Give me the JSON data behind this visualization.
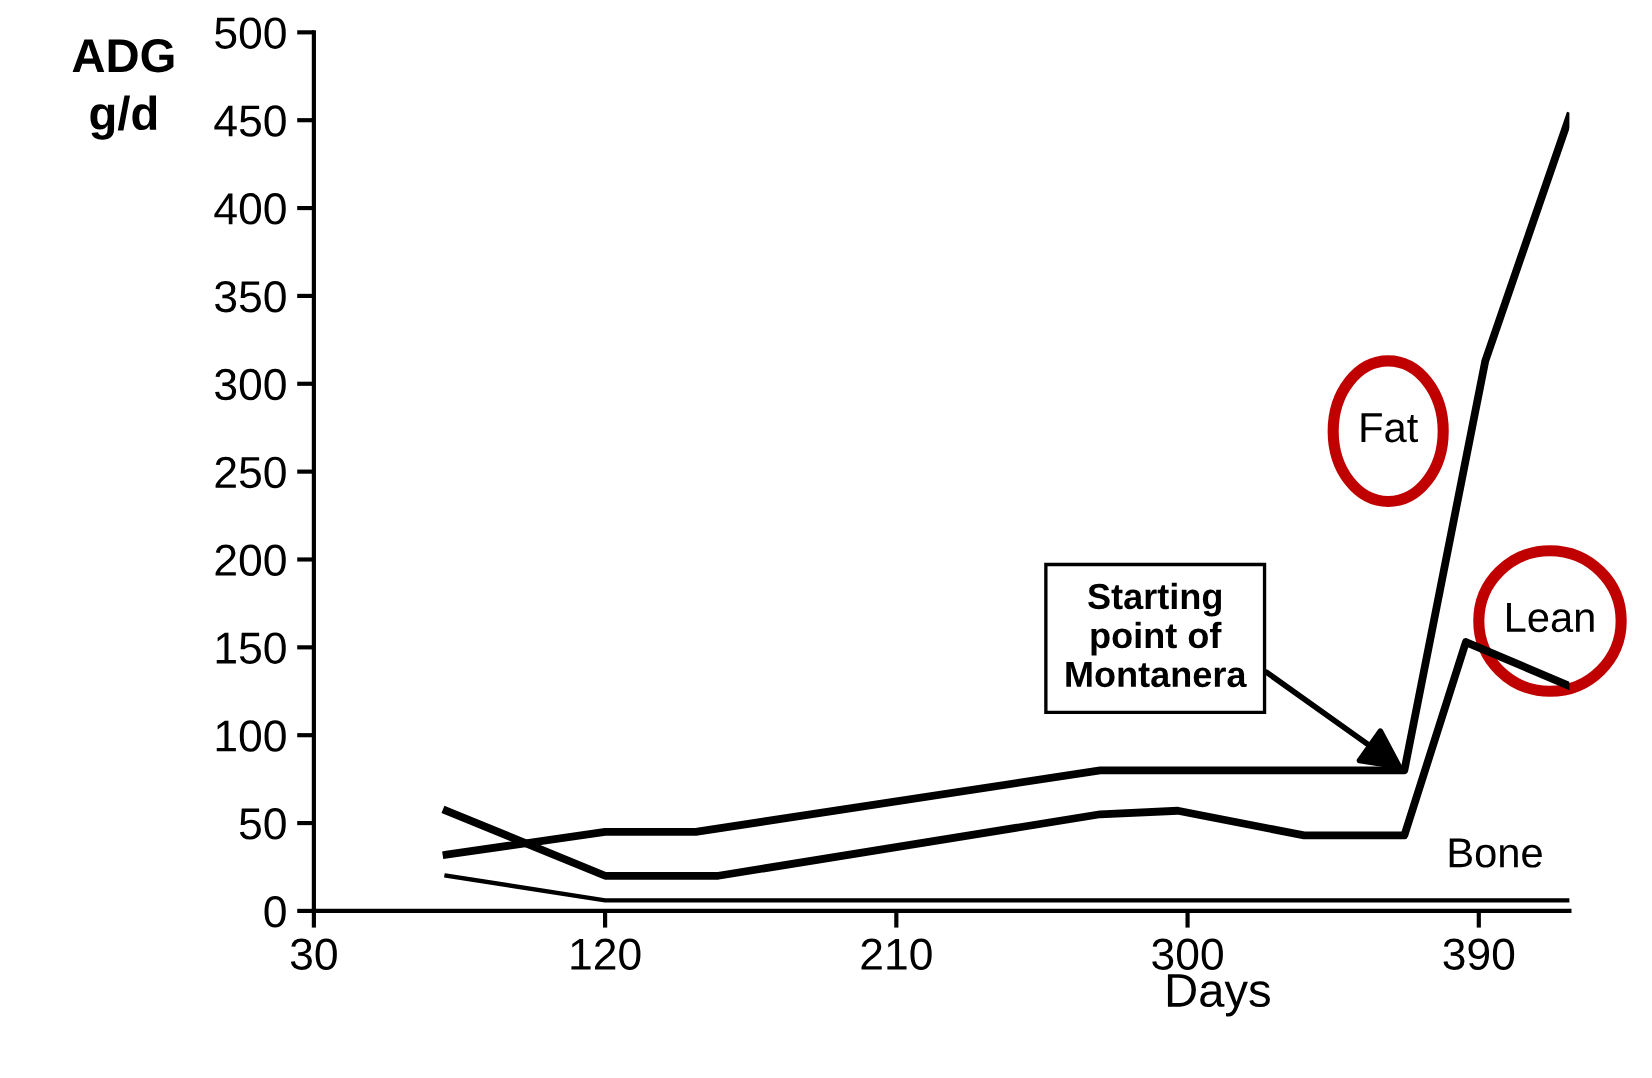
{
  "chart_data": {
    "type": "line",
    "ylabel": "ADG\ng/d",
    "xlabel": "Days",
    "xlim": [
      30,
      418
    ],
    "xticks": [
      30,
      120,
      210,
      300,
      390
    ],
    "ylim": [
      0,
      500
    ],
    "yticks": [
      0,
      50,
      100,
      150,
      200,
      250,
      300,
      350,
      400,
      450,
      500
    ],
    "grid": false,
    "marker": "none",
    "line_style": "solid",
    "series": [
      {
        "name": "Fat",
        "color": "#000000",
        "x": [
          71,
          120,
          148,
          273,
          367,
          392,
          418
        ],
        "values": [
          32,
          45,
          45,
          80,
          80,
          313,
          452
        ]
      },
      {
        "name": "Lean",
        "color": "#000000",
        "x": [
          71,
          120,
          155,
          273,
          297,
          336,
          367,
          386,
          418
        ],
        "values": [
          57,
          20,
          20,
          55,
          57,
          43,
          43,
          153,
          128
        ]
      },
      {
        "name": "Bone",
        "color": "#000000",
        "x": [
          71,
          120,
          418
        ],
        "values": [
          20,
          6,
          6
        ]
      }
    ],
    "annotations": [
      {
        "text": "Starting\npoint of\nMontanera",
        "x": 367,
        "y": 80
      }
    ]
  }
}
